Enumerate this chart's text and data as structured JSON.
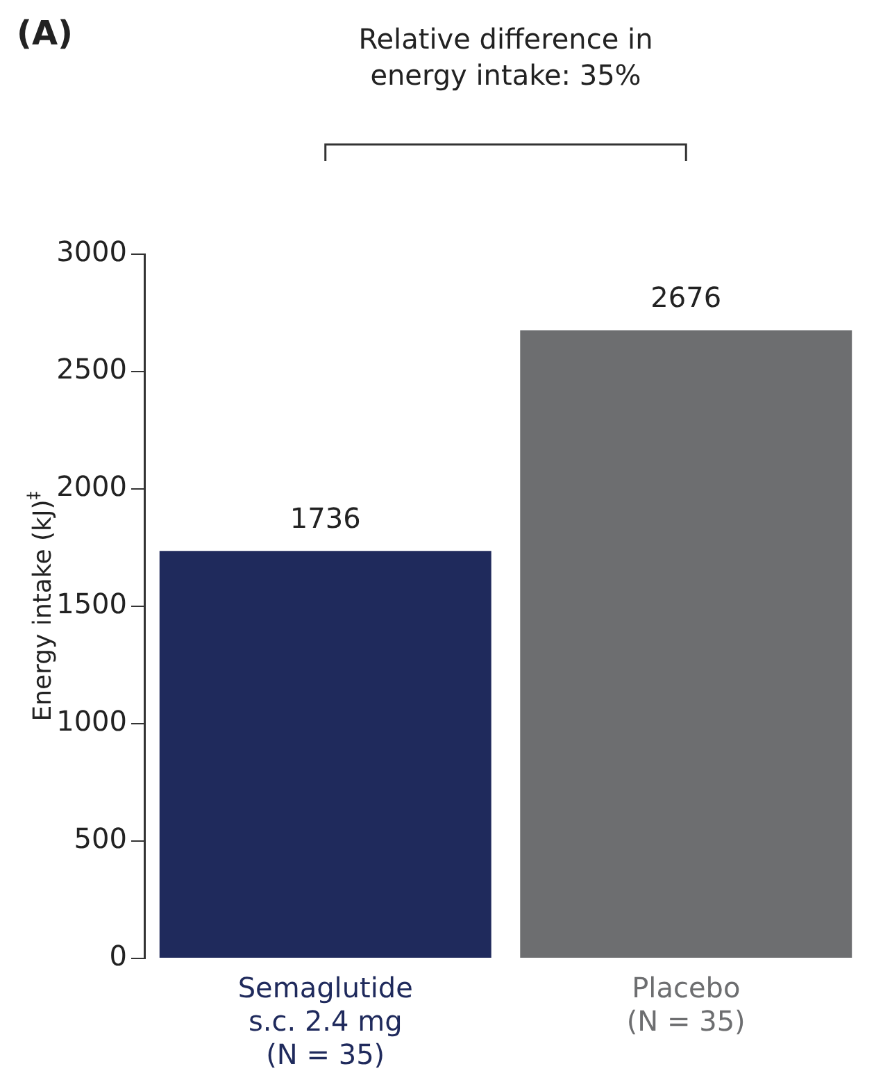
{
  "chart_data": {
    "type": "bar",
    "title": "Relative difference in energy intake: 35%",
    "annotations": [
      "(A)"
    ],
    "ylabel": "Energy intake (kJ)$^{‡}$",
    "categories": [
      "Semaglutide s.c. 2.4 mg (N = 35)",
      "Placebo (N = 35)"
    ],
    "values": [
      1736,
      2676
    ],
    "colors": [
      "#1f2a5c",
      "#6d6e70"
    ],
    "ylim": [
      0,
      3000
    ],
    "yticks": [
      0,
      500,
      1000,
      1500,
      2000,
      2500,
      3000
    ],
    "data_labels": true,
    "grid": false,
    "legend": false
  }
}
